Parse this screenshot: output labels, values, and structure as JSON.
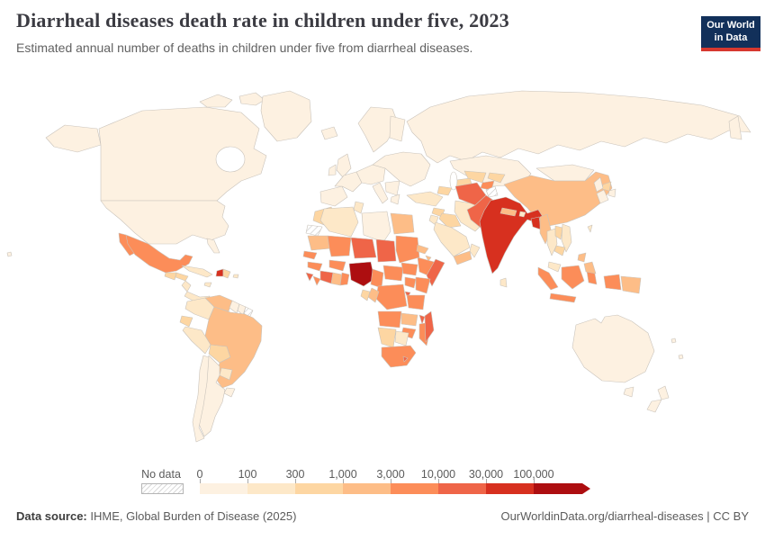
{
  "header": {
    "title": "Diarrheal diseases death rate in children under five, 2023",
    "subtitle": "Estimated annual number of deaths in children under five from diarrheal diseases.",
    "logo": {
      "line1": "Our World",
      "line2": "in Data",
      "bg_color": "#12305a",
      "accent_color": "#d7382f"
    }
  },
  "legend": {
    "no_data_label": "No data",
    "ticks": [
      "0",
      "100",
      "300",
      "1,000",
      "3,000",
      "10,000",
      "30,000",
      "100,000"
    ],
    "bin_colors": [
      "#fdf1e1",
      "#fde8c8",
      "#fdd6a2",
      "#fdbd87",
      "#fc8d59",
      "#ef6548",
      "#d7301f",
      "#ad0e10"
    ]
  },
  "footer": {
    "source_label": "Data source:",
    "source_rest": " IHME, Global Burden of Disease (2025)",
    "right_text": "OurWorldinData.org/diarrheal-diseases | CC BY"
  },
  "chart_data": {
    "type": "choropleth",
    "title": "Diarrheal diseases death rate in children under five, 2023",
    "subtitle": "Estimated annual number of deaths in children under five from diarrheal diseases.",
    "year": 2023,
    "unit": "deaths in children under five",
    "legend_position": "bottom",
    "bin_ranges": [
      "0-100",
      "100-300",
      "300-1,000",
      "1,000-3,000",
      "3,000-10,000",
      "10,000-30,000",
      "30,000-100,000",
      "100,000+"
    ],
    "bin_colors": [
      "#fdf1e1",
      "#fde8c8",
      "#fdd6a2",
      "#fdbd87",
      "#fc8d59",
      "#ef6548",
      "#d7301f",
      "#ad0e10"
    ],
    "no_data_style": "gray-diagonal-hatch",
    "country_bins": {
      "alaska": 1,
      "canada": 1,
      "usa": 1,
      "florida": 1,
      "greenland": 1,
      "arctic-islands-1": 1,
      "arctic-islands-2": 1,
      "baja": 5,
      "mexico": 5,
      "guatemala": 3,
      "honduras": 3,
      "nicaragua": 2,
      "costarica-panama": 2,
      "cuba": 2,
      "jamaica": 2,
      "haiti": 7,
      "dominican-republic": 3,
      "puerto-rico": 2,
      "colombia": 2,
      "venezuela": 4,
      "guyana": 1,
      "suriname": 1,
      "french-guiana": "nodata",
      "ecuador": 3,
      "peru": 2,
      "bolivia": 3,
      "brazil": 4,
      "paraguay": 2,
      "uruguay": 1,
      "argentina": 1,
      "chile": 1,
      "iceland": 1,
      "uk": 1,
      "ireland": 1,
      "scandinavia": 1,
      "finland": 1,
      "iberia": 1,
      "france": 1,
      "central-europe": 1,
      "italy": 1,
      "balkans": 1,
      "greece": 1,
      "east-europe": 1,
      "russia": 1,
      "kamchatka": 1,
      "kazakhstan": 1,
      "mongolia": 1,
      "china": 4,
      "north-korea": 3,
      "south-korea": 1,
      "japan-north": 1,
      "japan-south": 1,
      "taiwan": 2,
      "turkey": 2,
      "caucasus": 3,
      "syria": 3,
      "iraq": 3,
      "iran": 2,
      "saudi-arabia": 2,
      "yemen": 4,
      "oman": 2,
      "jordan-israel": 2,
      "turkmenistan": 3,
      "uzbekistan": 3,
      "tajikistan": 5,
      "kyrgyzstan": 3,
      "afghanistan": 6,
      "pakistan": 6,
      "kashmir": "nodata",
      "india": 7,
      "nepal": 4,
      "bhutan": 2,
      "bangladesh": 7,
      "sri-lanka": 2,
      "myanmar": 4,
      "thailand": 2,
      "laos": 3,
      "vietnam": 2,
      "cambodia": 3,
      "malaysia": 2,
      "sumatra": 5,
      "java": 5,
      "borneo": 5,
      "sulawesi": 5,
      "west-papua": 5,
      "papua-new-guinea": 4,
      "philippines-north": 4,
      "philippines-south": 4,
      "australia": 1,
      "tasmania": 1,
      "new-zealand-north": 1,
      "new-zealand-south": 1,
      "pacific-island-1": 1,
      "pacific-island-2": 1,
      "hawaii": 1,
      "morocco": 3,
      "western-sahara": "nodata",
      "algeria": 2,
      "tunisia": 2,
      "libya": 1,
      "egypt": 4,
      "mauritania": 4,
      "mali": 5,
      "niger": 6,
      "chad": 6,
      "sudan": 5,
      "eritrea": 4,
      "djibouti": 4,
      "senegal": 5,
      "guinea": 5,
      "sierra-leone": 6,
      "liberia": 5,
      "ivory-coast": 6,
      "ghana": 4,
      "togo-benin": 5,
      "burkina-faso": 5,
      "nigeria": 8,
      "cameroon": 5,
      "central-african-republic": 5,
      "south-sudan": 5,
      "ethiopia": 5,
      "somalia": 6,
      "kenya": 5,
      "uganda": 5,
      "drc": 5,
      "congo": 4,
      "gabon": 3,
      "rwanda-burundi": 6,
      "tanzania": 5,
      "angola": 5,
      "zambia": 4,
      "malawi": 6,
      "mozambique": 5,
      "zimbabwe": 5,
      "namibia": 3,
      "botswana": 2,
      "south-africa": 5,
      "lesotho": 6,
      "madagascar": 6
    }
  }
}
